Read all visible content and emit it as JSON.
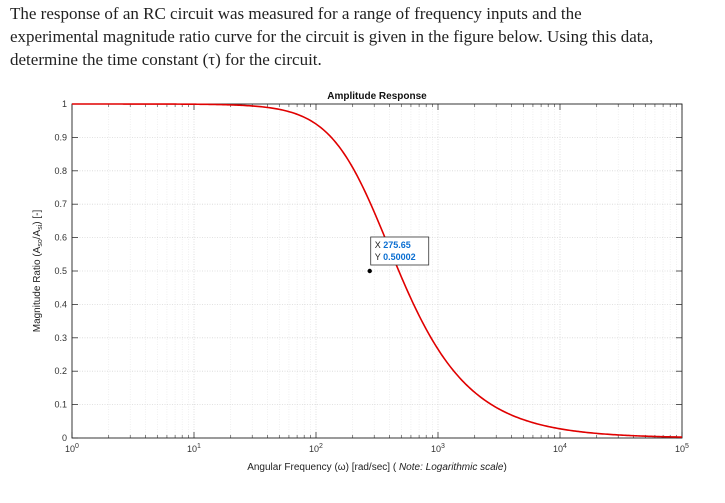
{
  "question": {
    "lines": [
      "The response of an RC circuit was measured for a range of frequency inputs and the",
      "experimental magnitude ratio curve for the circuit is given in the figure below. Using this data,",
      "determine the time constant (τ) for the circuit."
    ]
  },
  "chart_data": {
    "type": "line",
    "title": "Amplitude Response",
    "xlabel_main": "Angular Frequency (ω) [rad/sec] ( ",
    "xlabel_note": "Note: Logarithmic scale",
    "xlabel_end": ")",
    "ylabel": "Magnitude Ratio (A",
    "ylabel_sub1": "so",
    "ylabel_mid": "/A",
    "ylabel_sub2": "si",
    "ylabel_end": ") [-]",
    "x_scale": "log",
    "xlim": [
      1,
      100000
    ],
    "ylim": [
      0,
      1
    ],
    "grid": true,
    "x_ticks": [
      {
        "base": "10",
        "exp": "0",
        "value": 1
      },
      {
        "base": "10",
        "exp": "1",
        "value": 10
      },
      {
        "base": "10",
        "exp": "2",
        "value": 100
      },
      {
        "base": "10",
        "exp": "3",
        "value": 1000
      },
      {
        "base": "10",
        "exp": "4",
        "value": 10000
      },
      {
        "base": "10",
        "exp": "5",
        "value": 100000
      }
    ],
    "y_ticks": [
      "0",
      "0.1",
      "0.2",
      "0.3",
      "0.4",
      "0.5",
      "0.6",
      "0.7",
      "0.8",
      "0.9",
      "1"
    ],
    "series": [
      {
        "model": "first-order low-pass",
        "corner_frequency": 275.65,
        "color": "#e00000"
      }
    ],
    "datatip": {
      "x_label": "X",
      "x_value": "275.65",
      "y_label": "Y",
      "y_value": "0.50002",
      "x": 275.65,
      "y": 0.50002
    }
  }
}
